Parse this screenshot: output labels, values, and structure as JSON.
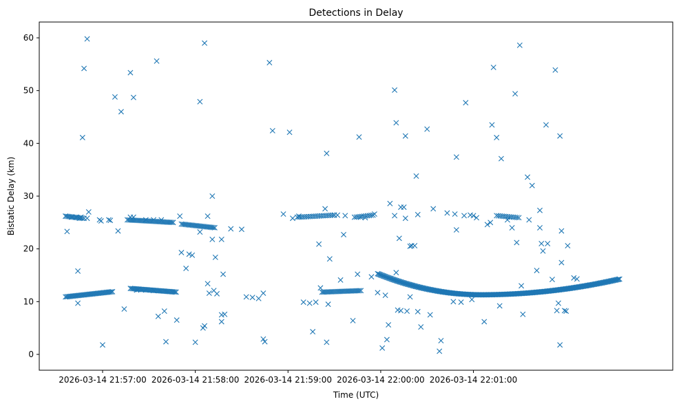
{
  "chart_data": {
    "type": "scatter",
    "title": "Detections in Delay",
    "xlabel": "Time (UTC)",
    "ylabel": "Bistatic Delay (km)",
    "xlim_seconds": [
      -41,
      369
    ],
    "ylim": [
      -3,
      63
    ],
    "marker": "x",
    "color": "#1f77b4",
    "grid": false,
    "x_ticks": [
      {
        "t": 0,
        "label": "2026-03-14 21:57:00"
      },
      {
        "t": 60,
        "label": "2026-03-14 21:58:00"
      },
      {
        "t": 120,
        "label": "2026-03-14 21:59:00"
      },
      {
        "t": 180,
        "label": "2026-03-14 22:00:00"
      },
      {
        "t": 240,
        "label": "2026-03-14 22:01:00"
      }
    ],
    "y_ticks": [
      0,
      10,
      20,
      30,
      40,
      50,
      60
    ],
    "tracks": [
      {
        "name": "lower-track-1",
        "t_start": -24,
        "t_end": 7,
        "d_start": 10.9,
        "d_end": 11.9,
        "step": 0.8
      },
      {
        "name": "lower-track-2",
        "t_start": 18,
        "t_end": 48,
        "d_start": 12.5,
        "d_end": 11.8,
        "step": 0.8
      },
      {
        "name": "upper-track-1",
        "t_start": -24,
        "t_end": -13,
        "d_start": 26.2,
        "d_end": 25.8,
        "step": 0.9
      },
      {
        "name": "upper-track-2",
        "t_start": 16,
        "t_end": 46,
        "d_start": 25.5,
        "d_end": 25.0,
        "step": 0.9
      },
      {
        "name": "upper-track-3",
        "t_start": 51,
        "t_end": 73,
        "d_start": 24.7,
        "d_end": 24.0,
        "step": 0.9
      },
      {
        "name": "upper-track-4",
        "t_start": 126,
        "t_end": 150,
        "d_start": 26.0,
        "d_end": 26.4,
        "step": 1.2
      },
      {
        "name": "upper-track-5",
        "t_start": 163,
        "t_end": 175,
        "d_start": 26.0,
        "d_end": 26.4,
        "step": 1.2
      },
      {
        "name": "lower-track-3",
        "t_start": 142,
        "t_end": 168,
        "d_start": 11.8,
        "d_end": 12.1,
        "step": 0.9
      },
      {
        "name": "lower-track-4-curve",
        "t_start": 178,
        "t_end": 335,
        "d_start": 15.3,
        "d_end": 14.3,
        "d_min": 11.3,
        "t_min": 245,
        "step": 0.6
      },
      {
        "name": "upper-track-6",
        "t_start": 255,
        "t_end": 270,
        "d_start": 26.3,
        "d_end": 25.9,
        "step": 1.2
      }
    ],
    "points": [
      [
        -24,
        26.2
      ],
      [
        -20,
        26.0
      ],
      [
        -17,
        26.0
      ],
      [
        -15,
        25.8
      ],
      [
        -14,
        26.0
      ],
      [
        -12,
        25.8
      ],
      [
        -10,
        25.8
      ],
      [
        -9,
        27.0
      ],
      [
        -23,
        23.3
      ],
      [
        -16,
        15.8
      ],
      [
        -16,
        9.7
      ],
      [
        -13,
        41.1
      ],
      [
        -12,
        54.2
      ],
      [
        -10,
        59.8
      ],
      [
        0,
        1.8
      ],
      [
        8,
        48.8
      ],
      [
        12,
        46.0
      ],
      [
        18,
        53.4
      ],
      [
        20,
        48.7
      ],
      [
        10,
        23.4
      ],
      [
        14,
        8.6
      ],
      [
        5,
        25.4
      ],
      [
        -2,
        25.5
      ],
      [
        -1,
        25.3
      ],
      [
        4,
        25.5
      ],
      [
        18,
        26.0
      ],
      [
        20,
        26.0
      ],
      [
        22,
        12.2
      ],
      [
        23,
        12.3
      ],
      [
        28,
        25.5
      ],
      [
        33,
        25.5
      ],
      [
        28,
        12.2
      ],
      [
        33,
        12.1
      ],
      [
        35,
        55.6
      ],
      [
        36,
        7.2
      ],
      [
        40,
        8.2
      ],
      [
        41,
        2.4
      ],
      [
        38,
        25.5
      ],
      [
        48,
        6.5
      ],
      [
        50,
        26.2
      ],
      [
        51,
        19.3
      ],
      [
        54,
        16.3
      ],
      [
        56,
        19.0
      ],
      [
        58,
        18.8
      ],
      [
        60,
        2.3
      ],
      [
        63,
        47.9
      ],
      [
        66,
        59.0
      ],
      [
        65,
        5.0
      ],
      [
        66,
        5.4
      ],
      [
        63,
        23.2
      ],
      [
        68,
        26.2
      ],
      [
        68,
        13.4
      ],
      [
        69,
        11.6
      ],
      [
        71,
        30.0
      ],
      [
        71,
        21.8
      ],
      [
        73,
        18.4
      ],
      [
        74,
        11.5
      ],
      [
        72,
        12.1
      ],
      [
        77,
        21.8
      ],
      [
        78,
        15.2
      ],
      [
        77,
        7.5
      ],
      [
        77,
        6.2
      ],
      [
        79,
        7.6
      ],
      [
        83,
        23.8
      ],
      [
        90,
        23.7
      ],
      [
        93,
        10.9
      ],
      [
        97,
        10.8
      ],
      [
        101,
        10.6
      ],
      [
        104,
        11.6
      ],
      [
        104,
        2.9
      ],
      [
        105,
        2.4
      ],
      [
        108,
        55.3
      ],
      [
        110,
        42.4
      ],
      [
        117,
        26.6
      ],
      [
        121,
        42.1
      ],
      [
        123,
        25.8
      ],
      [
        127,
        26.2
      ],
      [
        130,
        9.9
      ],
      [
        134,
        9.7
      ],
      [
        136,
        4.3
      ],
      [
        138,
        9.9
      ],
      [
        140,
        20.9
      ],
      [
        141,
        12.6
      ],
      [
        144,
        27.6
      ],
      [
        145,
        38.1
      ],
      [
        145,
        2.3
      ],
      [
        146,
        9.5
      ],
      [
        147,
        18.1
      ],
      [
        150,
        26.4
      ],
      [
        152,
        26.4
      ],
      [
        154,
        14.1
      ],
      [
        156,
        22.7
      ],
      [
        157,
        26.3
      ],
      [
        162,
        6.4
      ],
      [
        165,
        15.2
      ],
      [
        166,
        41.2
      ],
      [
        167,
        26.0
      ],
      [
        170,
        25.9
      ],
      [
        174,
        14.7
      ],
      [
        176,
        26.6
      ],
      [
        178,
        11.7
      ],
      [
        181,
        1.2
      ],
      [
        183,
        11.2
      ],
      [
        184,
        2.8
      ],
      [
        185,
        5.6
      ],
      [
        186,
        28.6
      ],
      [
        189,
        26.3
      ],
      [
        189,
        50.1
      ],
      [
        190,
        43.9
      ],
      [
        190,
        15.5
      ],
      [
        191,
        8.4
      ],
      [
        192,
        22.0
      ],
      [
        193,
        27.9
      ],
      [
        193,
        8.3
      ],
      [
        195,
        27.9
      ],
      [
        196,
        41.4
      ],
      [
        196,
        25.8
      ],
      [
        197,
        8.2
      ],
      [
        199,
        10.9
      ],
      [
        200,
        20.6
      ],
      [
        203,
        33.8
      ],
      [
        204,
        8.1
      ],
      [
        204,
        26.5
      ],
      [
        206,
        5.2
      ],
      [
        210,
        42.7
      ],
      [
        212,
        7.5
      ],
      [
        214,
        27.6
      ],
      [
        218,
        0.6
      ],
      [
        219,
        2.6
      ],
      [
        223,
        26.8
      ],
      [
        227,
        10.0
      ],
      [
        228,
        26.6
      ],
      [
        229,
        37.4
      ],
      [
        229,
        23.6
      ],
      [
        232,
        9.9
      ],
      [
        234,
        26.3
      ],
      [
        235,
        47.7
      ],
      [
        238,
        26.4
      ],
      [
        239,
        10.4
      ],
      [
        240,
        26.3
      ],
      [
        242,
        25.9
      ],
      [
        247,
        6.2
      ],
      [
        249,
        24.6
      ],
      [
        251,
        25.0
      ],
      [
        252,
        43.5
      ],
      [
        253,
        54.4
      ],
      [
        255,
        41.1
      ],
      [
        257,
        9.2
      ],
      [
        258,
        37.1
      ],
      [
        262,
        25.5
      ],
      [
        265,
        24.0
      ],
      [
        267,
        49.4
      ],
      [
        268,
        21.2
      ],
      [
        270,
        58.6
      ],
      [
        271,
        13.0
      ],
      [
        272,
        7.6
      ],
      [
        276,
        25.5
      ],
      [
        275,
        33.6
      ],
      [
        278,
        32.0
      ],
      [
        281,
        15.9
      ],
      [
        283,
        27.3
      ],
      [
        283,
        24.0
      ],
      [
        284,
        21.0
      ],
      [
        285,
        19.6
      ],
      [
        287,
        43.5
      ],
      [
        288,
        21.0
      ],
      [
        291,
        14.2
      ],
      [
        293,
        53.9
      ],
      [
        294,
        8.3
      ],
      [
        295,
        9.7
      ],
      [
        296,
        1.8
      ],
      [
        296,
        41.4
      ],
      [
        297,
        23.4
      ],
      [
        297,
        17.4
      ],
      [
        299,
        8.3
      ],
      [
        300,
        8.2
      ],
      [
        305,
        14.5
      ],
      [
        307,
        14.3
      ],
      [
        301,
        20.6
      ],
      [
        202,
        20.6
      ],
      [
        199,
        20.5
      ]
    ]
  }
}
